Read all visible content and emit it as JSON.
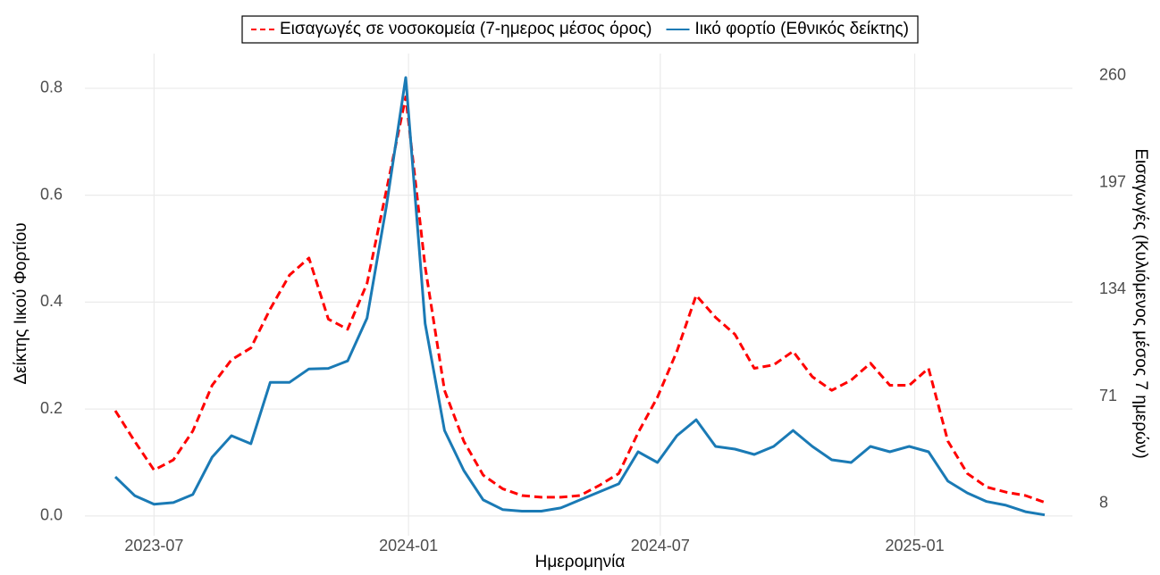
{
  "chart_data": {
    "type": "line",
    "x": [
      "2023-06-03",
      "2023-06-17",
      "2023-07-01",
      "2023-07-15",
      "2023-07-29",
      "2023-08-12",
      "2023-08-26",
      "2023-09-09",
      "2023-09-23",
      "2023-10-07",
      "2023-10-21",
      "2023-11-04",
      "2023-11-18",
      "2023-12-02",
      "2023-12-16",
      "2023-12-30",
      "2024-01-13",
      "2024-01-27",
      "2024-02-10",
      "2024-02-24",
      "2024-03-09",
      "2024-03-23",
      "2024-04-06",
      "2024-04-20",
      "2024-05-04",
      "2024-05-18",
      "2024-06-01",
      "2024-06-15",
      "2024-06-29",
      "2024-07-13",
      "2024-07-27",
      "2024-08-10",
      "2024-08-24",
      "2024-09-07",
      "2024-09-21",
      "2024-10-05",
      "2024-10-19",
      "2024-11-02",
      "2024-11-16",
      "2024-11-30",
      "2024-12-14",
      "2024-12-28",
      "2025-01-11",
      "2025-01-25",
      "2025-02-08",
      "2025-02-22",
      "2025-03-08",
      "2025-03-22",
      "2025-04-05"
    ],
    "series": [
      {
        "name": "Εισαγωγές σε νοσοκομεία (7-ημερος μέσος όρος)",
        "color": "#ff0000",
        "dashed": true,
        "axis": "y2",
        "values": [
          70,
          52,
          35,
          41,
          58,
          85,
          100,
          107,
          130,
          150,
          160,
          124,
          118,
          145,
          200,
          255,
          155,
          82,
          52,
          32,
          24,
          20,
          19,
          19,
          20,
          26,
          33,
          57,
          78,
          105,
          138,
          125,
          115,
          95,
          97,
          105,
          90,
          82,
          88,
          98,
          85,
          85,
          95,
          52,
          33,
          25,
          22,
          20,
          16
        ]
      },
      {
        "name": "Ιικό φορτίο (Εθνικός δείκτης)",
        "color": "#1a7ab5",
        "dashed": false,
        "values": [
          0.073,
          0.038,
          0.022,
          0.025,
          0.04,
          0.11,
          0.15,
          0.135,
          0.25,
          0.25,
          0.275,
          0.276,
          0.29,
          0.37,
          0.58,
          0.82,
          0.36,
          0.16,
          0.085,
          0.03,
          0.012,
          0.009,
          0.009,
          0.015,
          0.03,
          0.045,
          0.06,
          0.12,
          0.1,
          0.15,
          0.18,
          0.13,
          0.125,
          0.115,
          0.13,
          0.16,
          0.13,
          0.105,
          0.1,
          0.13,
          0.12,
          0.13,
          0.12,
          0.065,
          0.043,
          0.027,
          0.02,
          0.008,
          0.002
        ]
      }
    ],
    "xlim": [
      "2023-05-12",
      "2025-04-25"
    ],
    "xticks": [
      "2023-07",
      "2024-01",
      "2024-07",
      "2025-01"
    ],
    "ylim": [
      -0.037,
      0.865
    ],
    "yticks": [
      {
        "value": 0,
        "label": "0.0"
      },
      0.2,
      0.4,
      0.6,
      0.8
    ],
    "y2lim": [
      -3.66,
      280.5
    ],
    "y2ticks": [
      8,
      71,
      134,
      197,
      260
    ],
    "xlabel": "Ημερομηνία",
    "ylabel": "Δείκτης Ιικού Φορτίου",
    "y2label": "Εισαγωγές (Κυλιόμενος μέσος 7 ημερών)",
    "grid": true,
    "legend": "top"
  }
}
